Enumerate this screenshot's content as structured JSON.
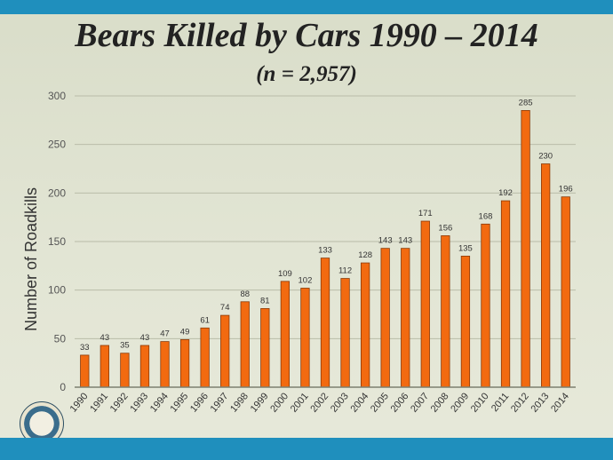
{
  "slide": {
    "title": "Bears Killed by Cars  1990 – 2014",
    "subtitle": "(n =  2,957)"
  },
  "colors": {
    "bar_fill": "#f26a10",
    "bar_stroke": "#8a3a08",
    "band": "#1f8fbd"
  },
  "icons": {
    "seal": "agency-seal-icon"
  },
  "chart_data": {
    "type": "bar",
    "title": "",
    "xlabel": "",
    "ylabel": "Number of Roadkills",
    "ylim": [
      0,
      300
    ],
    "yticks": [
      0,
      50,
      100,
      150,
      200,
      250,
      300
    ],
    "grid": true,
    "categories": [
      "1990",
      "1991",
      "1992",
      "1993",
      "1994",
      "1995",
      "1996",
      "1997",
      "1998",
      "1999",
      "2000",
      "2001",
      "2002",
      "2003",
      "2004",
      "2005",
      "2006",
      "2007",
      "2008",
      "2009",
      "2010",
      "2011",
      "2012",
      "2013",
      "2014"
    ],
    "values": [
      33,
      43,
      35,
      43,
      47,
      49,
      61,
      74,
      88,
      81,
      109,
      102,
      133,
      112,
      128,
      143,
      143,
      171,
      156,
      135,
      168,
      192,
      285,
      230,
      196
    ]
  }
}
